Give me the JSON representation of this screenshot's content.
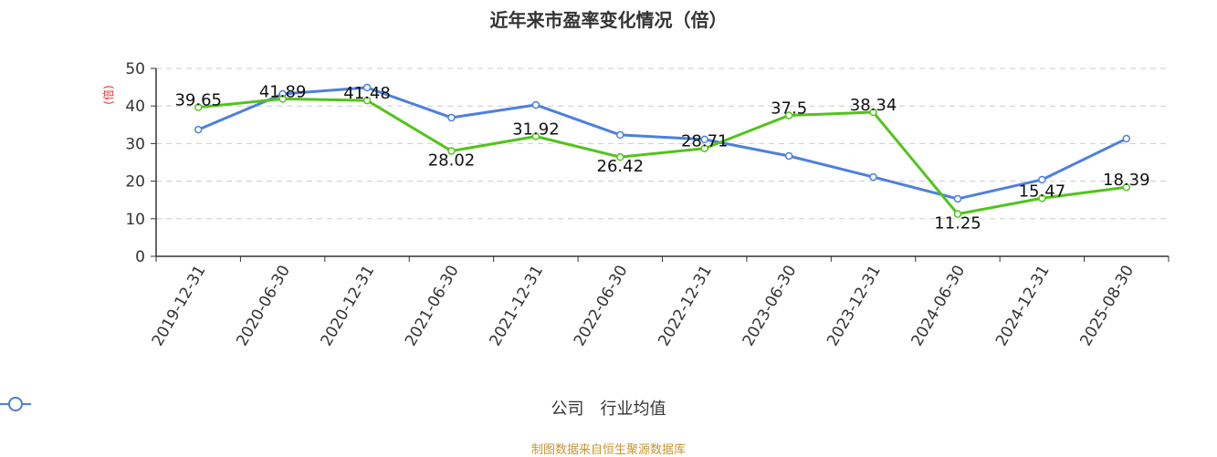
{
  "title": "近年来市盈率变化情况（倍）",
  "footer": "制图数据来自恒生聚源数据库",
  "legend": [
    {
      "label": "公司",
      "color": "#52c41a"
    },
    {
      "label": "行业均值",
      "color": "#4e80dc"
    }
  ],
  "y_axis_unit": "(倍)",
  "chart_data": {
    "type": "line",
    "title": "近年来市盈率变化情况（倍）",
    "xlabel": "",
    "ylabel": "(倍)",
    "ylim": [
      0,
      50
    ],
    "yticks": [
      0,
      10,
      20,
      30,
      40,
      50
    ],
    "grid": true,
    "legend_position": "bottom",
    "categories": [
      "2019-12-31",
      "2020-06-30",
      "2020-12-31",
      "2021-06-30",
      "2021-12-31",
      "2022-06-30",
      "2022-12-31",
      "2023-06-30",
      "2023-12-31",
      "2024-06-30",
      "2024-12-31",
      "2025-08-30"
    ],
    "series": [
      {
        "name": "公司",
        "color": "#52c41a",
        "values": [
          39.65,
          41.89,
          41.48,
          28.02,
          31.92,
          26.42,
          28.71,
          37.5,
          38.34,
          11.25,
          15.47,
          18.39
        ],
        "labels_shown": true
      },
      {
        "name": "行业均值",
        "color": "#4e80dc",
        "values": [
          33.7,
          43.2,
          44.9,
          36.9,
          40.3,
          32.3,
          31.1,
          26.7,
          21.1,
          15.3,
          20.4,
          31.3
        ],
        "labels_shown": false
      }
    ]
  }
}
